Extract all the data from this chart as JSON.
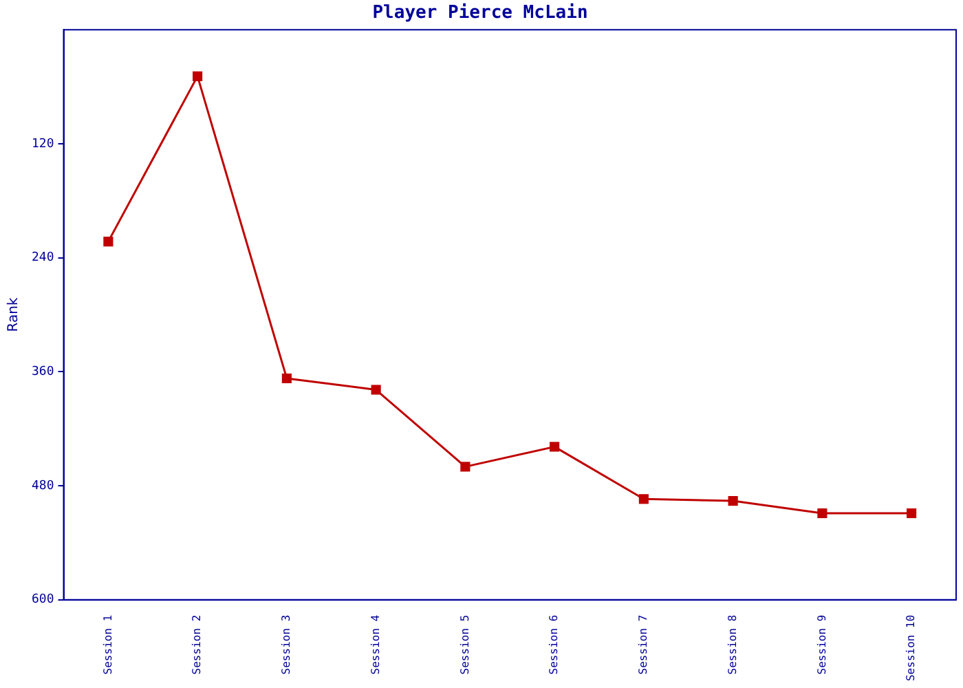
{
  "chart_data": {
    "type": "line",
    "title": "Player Pierce McLain",
    "ylabel": "Rank",
    "categories": [
      "Session 1",
      "Session 2",
      "Session 3",
      "Session 4",
      "Session 5",
      "Session 6",
      "Session 7",
      "Session 8",
      "Session 9",
      "Session 10"
    ],
    "series": [
      {
        "color": "#c00000",
        "values": [
          223,
          49,
          367,
          379,
          460,
          439,
          494,
          496,
          509,
          509
        ]
      }
    ],
    "ylim": [
      600,
      0
    ],
    "yticks": [
      120,
      240,
      360,
      480,
      600
    ],
    "grid": false,
    "legend": false,
    "marker": "square",
    "line_style": "solid"
  }
}
